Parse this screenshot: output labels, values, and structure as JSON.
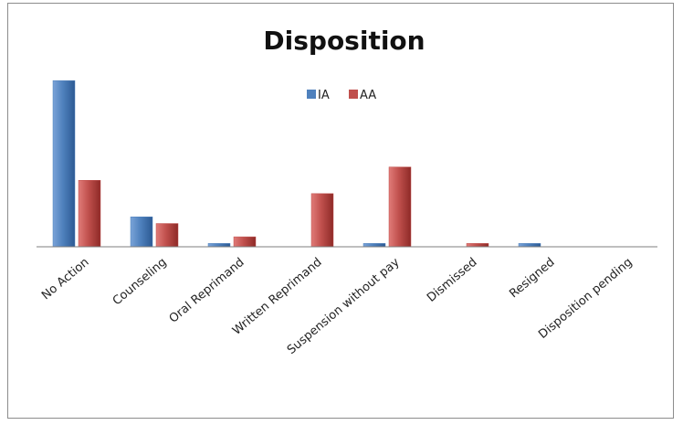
{
  "chart_data": {
    "type": "bar",
    "title": "Disposition",
    "categories": [
      "No Action",
      "Counseling",
      "Oral Reprimand",
      "Written Reprimand",
      "Suspension without pay",
      "Dismissed",
      "Resigned",
      "Disposition pending"
    ],
    "series": [
      {
        "name": "IA",
        "values": [
          50,
          9,
          1,
          0,
          1,
          0,
          1,
          0
        ],
        "color": "#4f81bd"
      },
      {
        "name": "AA",
        "values": [
          20,
          7,
          3,
          16,
          24,
          1,
          0,
          0
        ],
        "color": "#c0504d"
      }
    ],
    "ylim": [
      0,
      55
    ],
    "grid": false,
    "legend": "top-center",
    "xlabel": "",
    "ylabel": ""
  }
}
